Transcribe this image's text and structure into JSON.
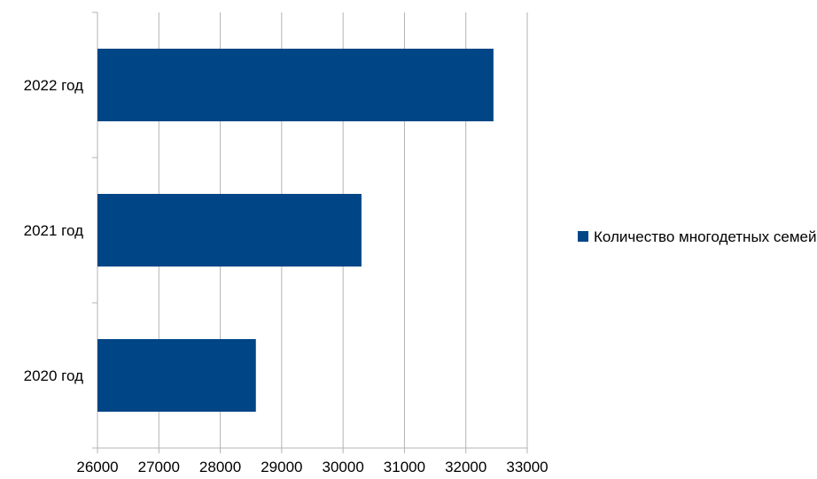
{
  "chart_data": {
    "type": "bar",
    "orientation": "horizontal",
    "categories": [
      "2022 год",
      "2021 год",
      "2020 год"
    ],
    "series": [
      {
        "name": "Количество многодетных семей",
        "values": [
          32450,
          30300,
          28580
        ]
      }
    ],
    "xlim": [
      26000,
      33000
    ],
    "xticks": [
      "26000",
      "27000",
      "28000",
      "29000",
      "30000",
      "31000",
      "32000",
      "33000"
    ],
    "grid": true,
    "legend_position": "right",
    "bar_color": "#004586",
    "grid_color": "#b3b3b3"
  }
}
